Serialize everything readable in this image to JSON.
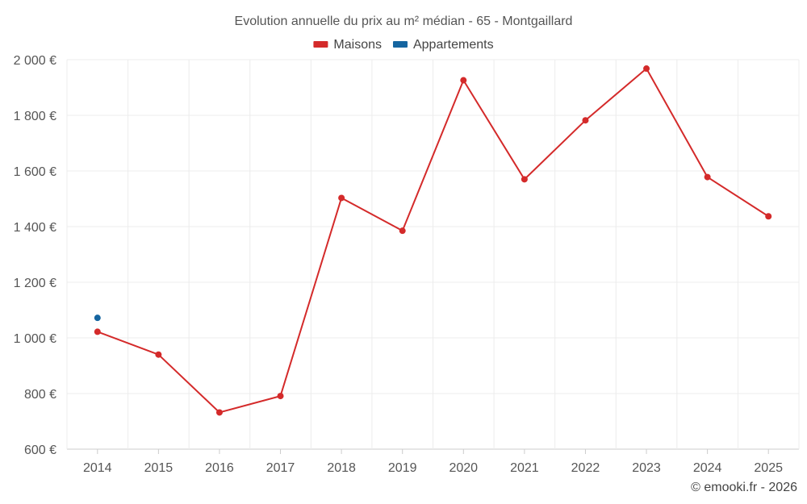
{
  "chart_data": {
    "type": "line",
    "title": "Evolution annuelle du prix au m² médian - 65 - Montgaillard",
    "categories": [
      "2014",
      "2015",
      "2016",
      "2017",
      "2018",
      "2019",
      "2020",
      "2021",
      "2022",
      "2023",
      "2024",
      "2025"
    ],
    "series": [
      {
        "name": "Maisons",
        "color": "#d42a2a",
        "values": [
          1022,
          940,
          732,
          791,
          1503,
          1385,
          1926,
          1570,
          1782,
          1968,
          1578,
          1437
        ]
      },
      {
        "name": "Appartements",
        "color": "#1565a0",
        "values": [
          1072,
          null,
          null,
          null,
          null,
          null,
          null,
          null,
          null,
          null,
          null,
          null
        ]
      }
    ],
    "ylim": [
      600,
      2000
    ],
    "yticks": [
      600,
      800,
      1000,
      1200,
      1400,
      1600,
      1800,
      2000
    ],
    "ytick_labels": [
      "600 €",
      "800 €",
      "1 000 €",
      "1 200 €",
      "1 400 €",
      "1 600 €",
      "1 800 €",
      "2 000 €"
    ],
    "xlabel": "",
    "ylabel": "",
    "grid": true,
    "legend_position": "top-center"
  },
  "footer": {
    "copyright": "© emooki.fr - 2026"
  }
}
